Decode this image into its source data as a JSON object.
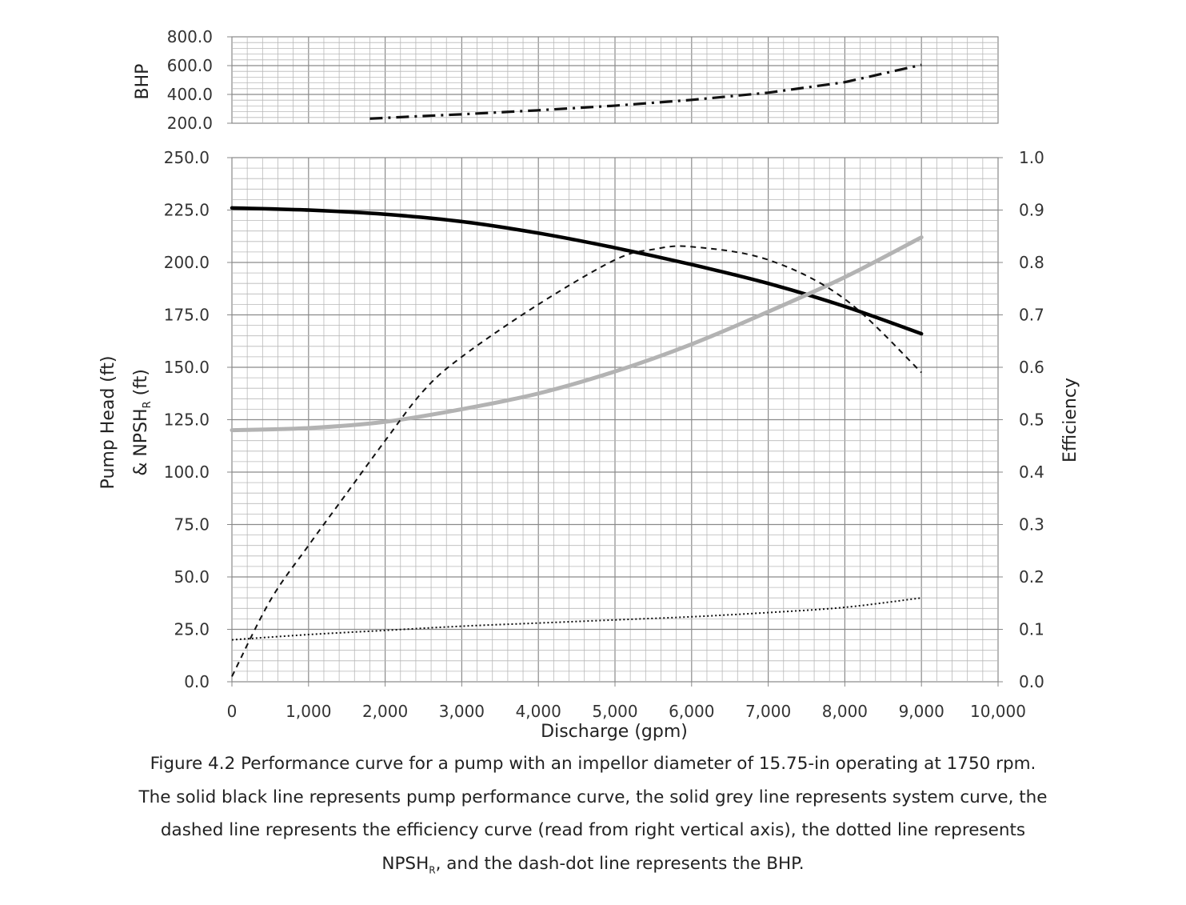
{
  "chart_data": [
    {
      "type": "line",
      "panel": "bhp",
      "ylabel": "BHP",
      "ylim": [
        200,
        800
      ],
      "yticks": [
        "800.0",
        "600.0",
        "400.0",
        "200.0"
      ],
      "xlim": [
        0,
        10000
      ],
      "grid": true,
      "series": [
        {
          "style": "dash-dot",
          "color": "#111111",
          "x": [
            1800,
            2500,
            3000,
            4000,
            5000,
            6000,
            7000,
            8000,
            9000
          ],
          "y": [
            232,
            250,
            262,
            290,
            322,
            362,
            412,
            485,
            605
          ]
        }
      ]
    },
    {
      "type": "line",
      "panel": "main",
      "xlabel": "Discharge (gpm)",
      "ylabel": "Pump Head (ft)",
      "ylabel2": "& NPSH",
      "ylabel2_sub": "R",
      "ylabel2_tail": " (ft)",
      "y2label": "Efficiency",
      "xlim": [
        0,
        10000
      ],
      "ylim": [
        0,
        250
      ],
      "y2lim": [
        0,
        1
      ],
      "grid": true,
      "xticks": [
        "0",
        "1,000",
        "2,000",
        "3,000",
        "4,000",
        "5,000",
        "6,000",
        "7,000",
        "8,000",
        "9,000",
        "10,000"
      ],
      "yticks": [
        "0.0",
        "25.0",
        "50.0",
        "75.0",
        "100.0",
        "125.0",
        "150.0",
        "175.0",
        "200.0",
        "225.0",
        "250.0"
      ],
      "y2ticks": [
        "0.0",
        "0.1",
        "0.2",
        "0.3",
        "0.4",
        "0.5",
        "0.6",
        "0.7",
        "0.8",
        "0.9",
        "1.0"
      ],
      "series": [
        {
          "style": "solid",
          "color": "#000000",
          "axis": "left",
          "x": [
            0,
            1000,
            2000,
            3000,
            4000,
            5000,
            6000,
            7000,
            8000,
            9000
          ],
          "y": [
            226,
            225,
            223,
            219.5,
            214,
            207,
            199,
            190,
            179,
            166
          ]
        },
        {
          "style": "solid",
          "color": "#b3b3b3",
          "axis": "left",
          "x": [
            0,
            1000,
            2000,
            3000,
            4000,
            5000,
            6000,
            7000,
            8000,
            9000
          ],
          "y": [
            120,
            121,
            124,
            130,
            137.5,
            148,
            161,
            176.5,
            193,
            212
          ]
        },
        {
          "style": "dashed",
          "color": "#111111",
          "axis": "right",
          "x": [
            0,
            500,
            1000,
            1500,
            2000,
            2500,
            3000,
            4000,
            5000,
            5500,
            6000,
            7000,
            8000,
            9000
          ],
          "y": [
            0.01,
            0.155,
            0.26,
            0.36,
            0.46,
            0.555,
            0.62,
            0.72,
            0.805,
            0.825,
            0.83,
            0.805,
            0.73,
            0.59
          ]
        },
        {
          "style": "dotted",
          "color": "#111111",
          "axis": "left",
          "x": [
            0,
            1000,
            2000,
            3000,
            4000,
            5000,
            6000,
            7000,
            8000,
            9000
          ],
          "y": [
            20,
            22.5,
            24.5,
            26.5,
            28,
            29.5,
            31,
            33,
            35.5,
            40
          ]
        }
      ]
    }
  ],
  "caption": {
    "line1": "Figure 4.2 Performance curve for a pump with an impellor diameter of 15.75-in operating at 1750 rpm.",
    "line2": "The solid black line represents pump performance curve, the solid grey line represents system curve, the",
    "line3": "dashed line represents the efficiency curve (read from right vertical axis), the dotted line represents",
    "line4_pre": "NPSH",
    "line4_sub": "R",
    "line4_post": ", and the dash-dot line represents the BHP."
  }
}
